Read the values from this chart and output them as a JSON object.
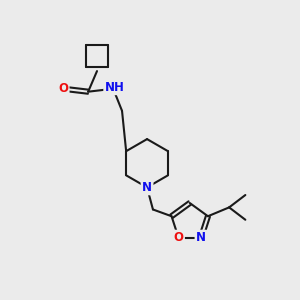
{
  "bg_color": "#ebebeb",
  "bond_color": "#1a1a1a",
  "bond_width": 1.5,
  "atom_colors": {
    "C": "#1a1a1a",
    "N": "#1010ee",
    "O": "#ee1010",
    "H": "#3a9090"
  },
  "font_size": 8.5
}
